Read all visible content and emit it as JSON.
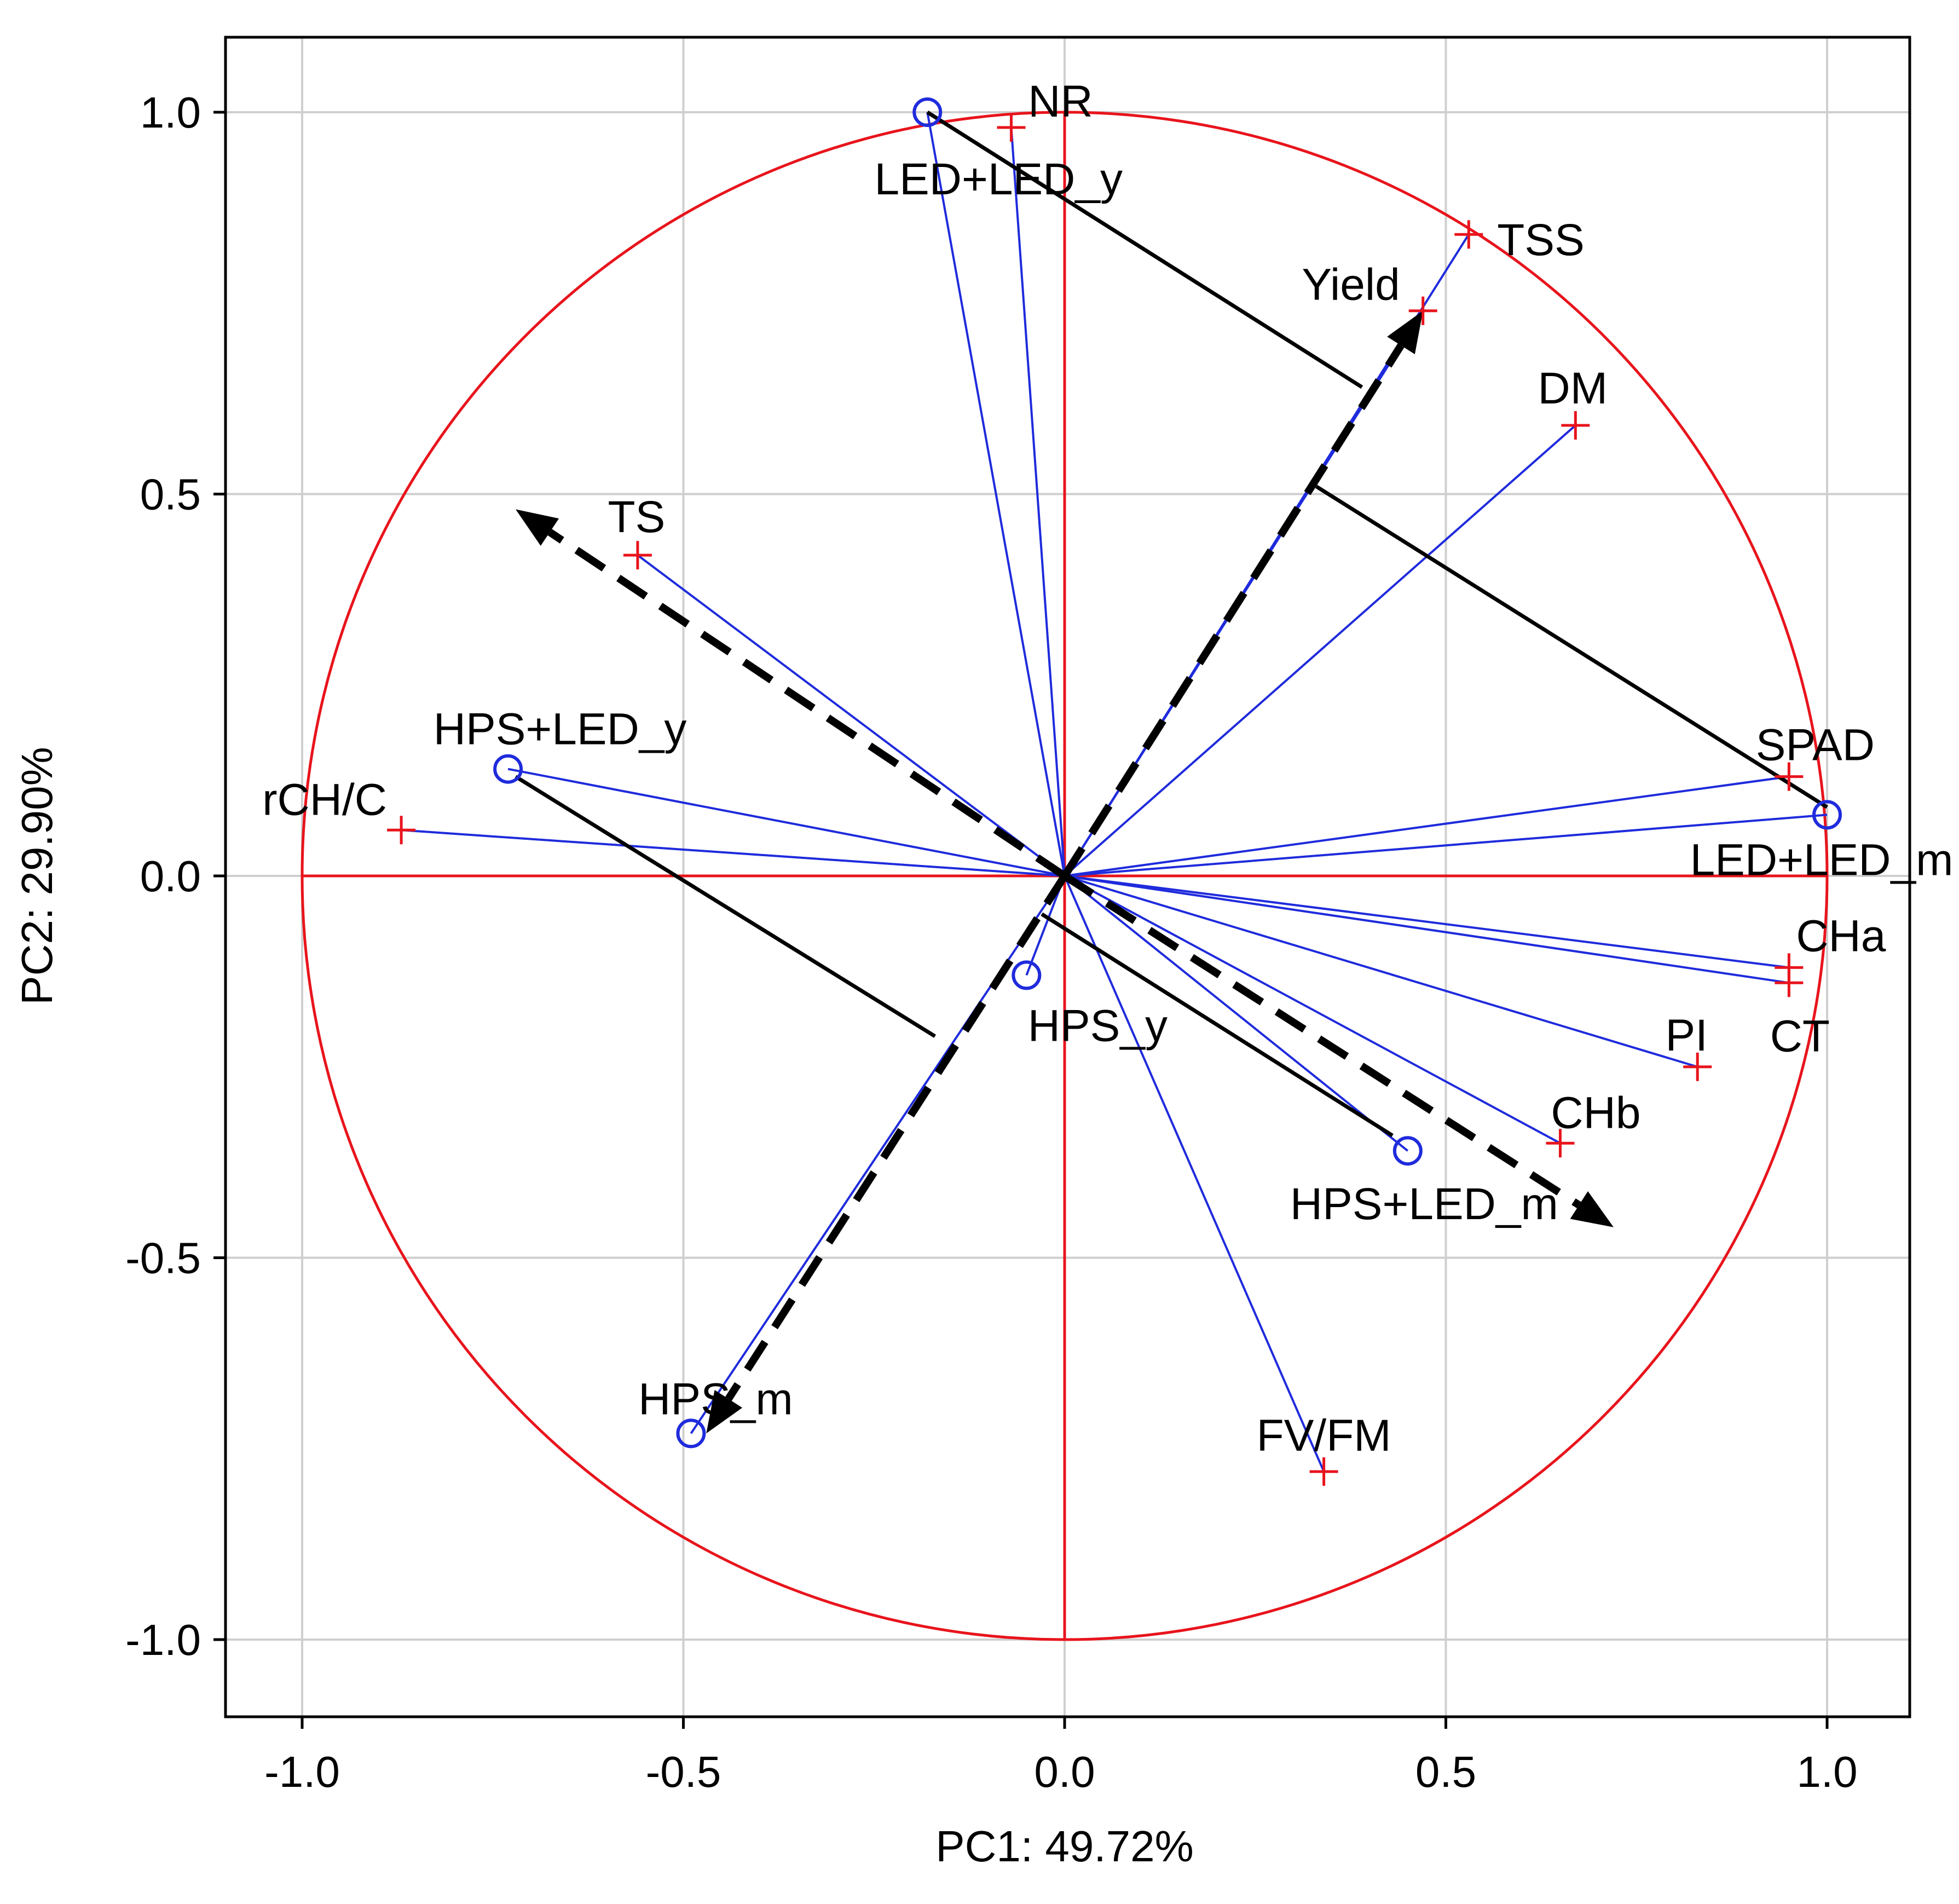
{
  "chart_data": {
    "type": "scatter",
    "subtype": "pca-biplot",
    "title": "",
    "xlabel": "PC1: 49.72%",
    "ylabel": "PC2: 29.90%",
    "xlim": [
      -1.1,
      1.1
    ],
    "ylim": [
      -1.1,
      1.1
    ],
    "x_ticks": [
      -1.0,
      -0.5,
      0.0,
      0.5,
      1.0
    ],
    "y_ticks": [
      -1.0,
      -0.5,
      0.0,
      0.5,
      1.0
    ],
    "x_tick_labels": [
      "-1.0",
      "-0.5",
      "0.0",
      "0.5",
      "1.0"
    ],
    "y_tick_labels": [
      "-1.0",
      "-0.5",
      "0.0",
      "0.5",
      "1.0"
    ],
    "grid": true,
    "unit_circle": true,
    "colors": {
      "circle": "#e8141c",
      "axes_cross": "#e8141c",
      "variables": "#e8141c",
      "loading_lines": "#1f2bdc",
      "cases": "#1f2bdc",
      "arrows": "#000000",
      "grid": "#cfcfcf"
    },
    "variables": [
      {
        "name": "NR",
        "x": -0.07,
        "y": 0.98
      },
      {
        "name": "TSS",
        "x": 0.53,
        "y": 0.84
      },
      {
        "name": "Yield",
        "x": 0.47,
        "y": 0.74
      },
      {
        "name": "DM",
        "x": 0.67,
        "y": 0.59
      },
      {
        "name": "TS",
        "x": -0.56,
        "y": 0.42
      },
      {
        "name": "rCH/C",
        "x": -0.87,
        "y": 0.06
      },
      {
        "name": "SPAD",
        "x": 0.95,
        "y": 0.13
      },
      {
        "name": "CHa",
        "x": 0.95,
        "y": -0.12
      },
      {
        "name": "CT",
        "x": 0.95,
        "y": -0.14
      },
      {
        "name": "PI",
        "x": 0.83,
        "y": -0.25
      },
      {
        "name": "CHb",
        "x": 0.65,
        "y": -0.35
      },
      {
        "name": "FV/FM",
        "x": 0.34,
        "y": -0.78
      }
    ],
    "cases": [
      {
        "name": "LED+LED_y",
        "x": -0.18,
        "y": 1.0
      },
      {
        "name": "HPS+LED_y",
        "x": -0.73,
        "y": 0.14
      },
      {
        "name": "LED+LED_m",
        "x": 1.0,
        "y": 0.08
      },
      {
        "name": "HPS_y",
        "x": -0.05,
        "y": -0.13
      },
      {
        "name": "HPS+LED_m",
        "x": 0.45,
        "y": -0.36
      },
      {
        "name": "HPS_m",
        "x": -0.49,
        "y": -0.73
      }
    ],
    "dashed_arrows": [
      {
        "from": [
          0,
          0
        ],
        "to": [
          0.47,
          0.74
        ]
      },
      {
        "from": [
          0,
          0
        ],
        "to": [
          -0.72,
          0.48
        ]
      },
      {
        "from": [
          0,
          0
        ],
        "to": [
          0.72,
          -0.46
        ]
      },
      {
        "from": [
          0,
          0
        ],
        "to": [
          -0.47,
          -0.73
        ]
      }
    ],
    "solid_segments": [
      {
        "from": [
          -0.18,
          1.0
        ],
        "to": [
          0.39,
          0.64
        ]
      },
      {
        "from": [
          0.33,
          0.51
        ],
        "to": [
          1.0,
          0.09
        ]
      },
      {
        "from": [
          -0.72,
          0.13
        ],
        "to": [
          -0.17,
          -0.21
        ]
      },
      {
        "from": [
          -0.03,
          -0.05
        ],
        "to": [
          0.43,
          -0.34
        ]
      }
    ]
  }
}
